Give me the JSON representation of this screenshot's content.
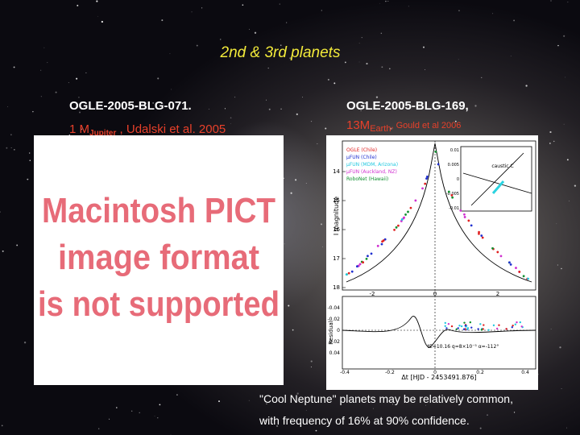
{
  "slide": {
    "title": "2nd & 3rd planets",
    "left": {
      "heading": "OGLE-2005-BLG-071.",
      "subtitle": {
        "prefix": "1 M",
        "subscript": "Jupiter",
        "suffix": " , Udalski et al. 2005"
      },
      "placeholder": [
        "Macintosh PICT",
        "image format",
        "is not supported"
      ]
    },
    "right": {
      "heading": "OGLE-2005-BLG-169,",
      "subtitle": {
        "prefix": "13M",
        "subscript": "Earth",
        "suffix": ", Gould et al 2006"
      },
      "figure": {
        "legend": [
          "OGLE (Chile)",
          "μFUN (Chile)",
          "μFUN (MDM, Arizona)",
          "μFUN (Auckland, NZ)",
          "RoboNet (Hawaii)"
        ],
        "y_label": "I magnitude",
        "y_ticks": [
          "14",
          "15",
          "16",
          "17",
          "18"
        ],
        "x_ticks": [
          "-2",
          "0",
          "2"
        ],
        "residual_label": "Residual",
        "residual_ticks": [
          "-0.04",
          "-0.02",
          "0",
          "0.02",
          "0.04"
        ],
        "bottom_x_ticks": [
          "-0.4",
          "-0.2",
          "0",
          "0.2",
          "0.4"
        ],
        "x_label": "Δt [HJD - 2453491.876]",
        "inset_label": "caustic C",
        "inset_ticks": [
          "0.01",
          "0.005",
          "0",
          "-0.005",
          "-0.01"
        ],
        "annotation": "tE=10.16  q=8×10⁻⁵  α=-112°"
      }
    },
    "footer": [
      "\"Cool Neptune\" planets may be relatively common,",
      "with frequency of 16% at 90% confidence."
    ]
  }
}
